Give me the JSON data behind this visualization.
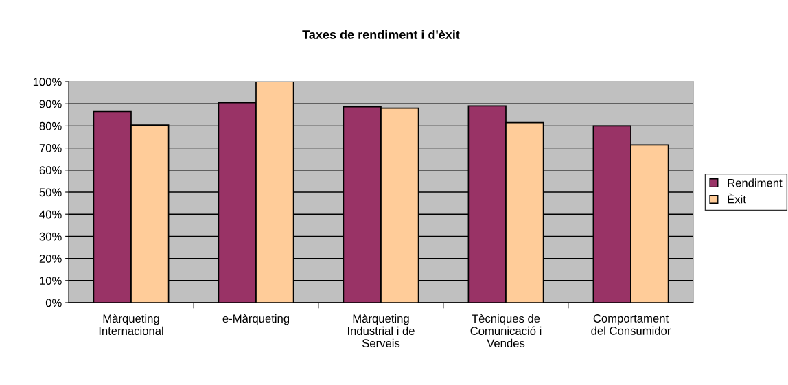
{
  "chart_data": {
    "type": "bar",
    "title": "Taxes de rendiment i d'èxit",
    "categories": [
      "Màrqueting\nInternacional",
      "e-Màrqueting",
      "Màrqueting\nIndustrial i de\nServeis",
      "Tècniques de\nComunicació i\nVendes",
      "Comportament\ndel Consumidor"
    ],
    "series": [
      {
        "name": "Rendiment",
        "color": "#993366",
        "values": [
          86.5,
          90.5,
          88.6,
          89,
          80
        ]
      },
      {
        "name": "Èxit",
        "color": "#ffcc99",
        "values": [
          80.4,
          100,
          88,
          81.5,
          71.3
        ]
      }
    ],
    "ylim": [
      0,
      100
    ],
    "yticks": [
      {
        "value": 0,
        "label": "0%"
      },
      {
        "value": 10,
        "label": "10%"
      },
      {
        "value": 20,
        "label": "20%"
      },
      {
        "value": 30,
        "label": "30%"
      },
      {
        "value": 40,
        "label": "40%"
      },
      {
        "value": 50,
        "label": "50%"
      },
      {
        "value": 60,
        "label": "60%"
      },
      {
        "value": 70,
        "label": "70%"
      },
      {
        "value": 80,
        "label": "80%"
      },
      {
        "value": 90,
        "label": "90%"
      },
      {
        "value": 100,
        "label": "100%"
      }
    ],
    "grid": "y",
    "legend": "right"
  }
}
